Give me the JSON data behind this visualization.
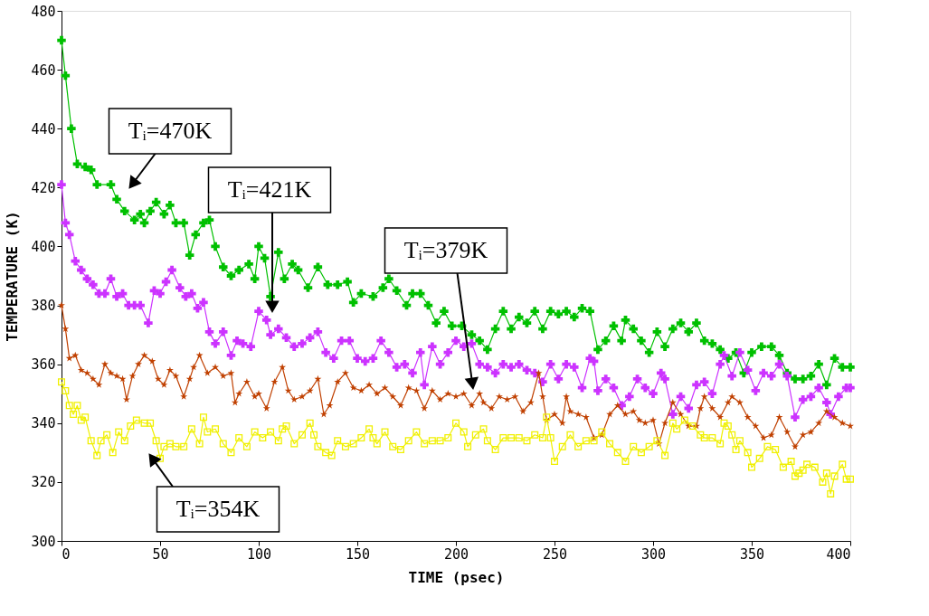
{
  "chart_data": {
    "type": "line",
    "xlabel": "TIME (psec)",
    "ylabel": "TEMPERATURE (K)",
    "xlim": [
      0,
      400
    ],
    "ylim": [
      300,
      480
    ],
    "xticks": [
      0,
      50,
      100,
      150,
      200,
      250,
      300,
      350,
      400
    ],
    "yticks": [
      300,
      320,
      340,
      360,
      380,
      400,
      420,
      440,
      460,
      480
    ],
    "grid": false,
    "line_style": "solid",
    "series": [
      {
        "color": "#00c000",
        "marker": "cross",
        "x": [
          0,
          2,
          5,
          8,
          12,
          15,
          18,
          25,
          28,
          32,
          37,
          40,
          42,
          45,
          48,
          52,
          55,
          58,
          62,
          65,
          68,
          72,
          75,
          78,
          82,
          86,
          90,
          95,
          98,
          100,
          103,
          106,
          110,
          113,
          117,
          120,
          125,
          130,
          135,
          140,
          145,
          148,
          152,
          158,
          163,
          166,
          170,
          175,
          178,
          182,
          186,
          190,
          194,
          198,
          203,
          208,
          212,
          216,
          220,
          224,
          228,
          232,
          236,
          240,
          244,
          248,
          252,
          256,
          260,
          264,
          268,
          272,
          276,
          280,
          284,
          286,
          290,
          294,
          298,
          302,
          306,
          310,
          314,
          318,
          322,
          326,
          330,
          334,
          338,
          342,
          346,
          350,
          355,
          360,
          364,
          368,
          372,
          376,
          380,
          384,
          388,
          392,
          396,
          400
        ],
        "values": [
          470,
          458,
          440,
          428,
          427,
          426,
          421,
          421,
          416,
          412,
          409,
          411,
          408,
          412,
          415,
          411,
          414,
          408,
          408,
          397,
          404,
          408,
          409,
          400,
          393,
          390,
          392,
          394,
          389,
          400,
          396,
          383,
          398,
          389,
          394,
          392,
          386,
          393,
          387,
          387,
          388,
          381,
          384,
          383,
          386,
          389,
          385,
          380,
          384,
          384,
          380,
          374,
          378,
          373,
          373,
          370,
          368,
          365,
          372,
          378,
          372,
          376,
          374,
          378,
          372,
          378,
          377,
          378,
          376,
          379,
          378,
          365,
          368,
          373,
          368,
          375,
          372,
          368,
          364,
          371,
          366,
          372,
          374,
          371,
          374,
          368,
          367,
          365,
          362,
          364,
          357,
          364,
          366,
          366,
          363,
          357,
          355,
          355,
          356,
          360,
          353,
          362,
          359,
          359
        ]
      },
      {
        "color": "#cc33ff",
        "marker": "cross",
        "x": [
          0,
          2,
          4,
          7,
          10,
          13,
          16,
          19,
          22,
          25,
          28,
          31,
          34,
          37,
          40,
          44,
          47,
          50,
          53,
          56,
          60,
          63,
          66,
          69,
          72,
          75,
          78,
          82,
          86,
          89,
          92,
          96,
          100,
          104,
          106,
          110,
          114,
          118,
          122,
          126,
          130,
          134,
          138,
          142,
          146,
          150,
          154,
          158,
          162,
          166,
          170,
          174,
          178,
          182,
          184,
          188,
          192,
          196,
          200,
          204,
          208,
          212,
          216,
          220,
          224,
          228,
          232,
          236,
          240,
          244,
          248,
          252,
          256,
          260,
          264,
          268,
          270,
          272,
          276,
          280,
          284,
          288,
          292,
          296,
          300,
          304,
          306,
          310,
          314,
          318,
          322,
          326,
          330,
          334,
          336,
          340,
          344,
          348,
          352,
          356,
          360,
          364,
          368,
          372,
          376,
          380,
          384,
          388,
          390,
          394,
          398,
          400
        ],
        "values": [
          421,
          408,
          404,
          395,
          392,
          389,
          387,
          384,
          384,
          389,
          383,
          384,
          380,
          380,
          380,
          374,
          385,
          384,
          388,
          392,
          386,
          383,
          384,
          379,
          381,
          371,
          367,
          371,
          363,
          368,
          367,
          366,
          378,
          375,
          370,
          372,
          369,
          366,
          367,
          369,
          371,
          364,
          362,
          368,
          368,
          362,
          361,
          362,
          368,
          364,
          359,
          360,
          357,
          364,
          353,
          366,
          360,
          364,
          368,
          366,
          367,
          360,
          359,
          357,
          360,
          359,
          360,
          358,
          357,
          354,
          360,
          355,
          360,
          359,
          352,
          362,
          361,
          351,
          355,
          352,
          346,
          349,
          355,
          352,
          350,
          357,
          355,
          343,
          349,
          345,
          353,
          354,
          350,
          360,
          363,
          356,
          364,
          358,
          351,
          357,
          356,
          360,
          356,
          342,
          348,
          349,
          352,
          347,
          343,
          349,
          352,
          352
        ]
      },
      {
        "color": "#c04000",
        "marker": "star",
        "x": [
          0,
          2,
          4,
          7,
          10,
          13,
          16,
          19,
          22,
          25,
          28,
          31,
          33,
          36,
          39,
          42,
          46,
          49,
          52,
          55,
          58,
          62,
          65,
          67,
          70,
          74,
          78,
          82,
          86,
          88,
          90,
          94,
          98,
          100,
          104,
          108,
          112,
          115,
          118,
          122,
          126,
          130,
          133,
          136,
          140,
          144,
          148,
          152,
          156,
          160,
          164,
          168,
          172,
          176,
          180,
          184,
          188,
          192,
          196,
          200,
          204,
          208,
          212,
          214,
          218,
          222,
          226,
          230,
          234,
          238,
          242,
          244,
          246,
          250,
          254,
          256,
          258,
          262,
          266,
          270,
          274,
          278,
          282,
          286,
          290,
          293,
          296,
          300,
          303,
          306,
          310,
          314,
          318,
          322,
          324,
          326,
          330,
          334,
          338,
          340,
          344,
          348,
          352,
          356,
          360,
          364,
          368,
          372,
          376,
          380,
          384,
          388,
          392,
          396,
          400
        ],
        "values": [
          380,
          372,
          362,
          363,
          358,
          357,
          355,
          353,
          360,
          357,
          356,
          355,
          348,
          356,
          360,
          363,
          361,
          355,
          353,
          358,
          356,
          349,
          355,
          359,
          363,
          357,
          359,
          356,
          357,
          347,
          350,
          354,
          349,
          350,
          345,
          354,
          359,
          351,
          348,
          349,
          351,
          355,
          343,
          346,
          354,
          357,
          352,
          351,
          353,
          350,
          352,
          349,
          346,
          352,
          351,
          345,
          351,
          348,
          350,
          349,
          350,
          346,
          350,
          347,
          345,
          349,
          348,
          349,
          344,
          347,
          357,
          349,
          341,
          343,
          340,
          349,
          344,
          343,
          342,
          335,
          336,
          343,
          346,
          343,
          344,
          341,
          340,
          341,
          333,
          340,
          347,
          343,
          339,
          339,
          345,
          349,
          345,
          342,
          347,
          349,
          347,
          342,
          339,
          335,
          336,
          342,
          337,
          332,
          336,
          337,
          340,
          344,
          342,
          340,
          339
        ]
      },
      {
        "color": "#f0f000",
        "marker": "square",
        "x": [
          0,
          2,
          4,
          6,
          8,
          10,
          12,
          15,
          18,
          20,
          23,
          26,
          29,
          32,
          35,
          38,
          42,
          45,
          48,
          50,
          52,
          55,
          58,
          62,
          66,
          70,
          72,
          74,
          78,
          82,
          86,
          90,
          94,
          98,
          102,
          106,
          110,
          112,
          114,
          118,
          122,
          126,
          128,
          130,
          134,
          137,
          140,
          144,
          148,
          152,
          156,
          158,
          160,
          164,
          168,
          172,
          176,
          180,
          184,
          188,
          192,
          196,
          200,
          204,
          206,
          210,
          214,
          216,
          220,
          224,
          228,
          232,
          236,
          240,
          244,
          246,
          248,
          250,
          254,
          258,
          262,
          266,
          270,
          274,
          278,
          282,
          286,
          290,
          294,
          298,
          302,
          306,
          310,
          312,
          316,
          320,
          324,
          326,
          330,
          334,
          336,
          338,
          340,
          342,
          344,
          348,
          350,
          354,
          358,
          362,
          366,
          370,
          372,
          374,
          376,
          378,
          382,
          386,
          388,
          390,
          392,
          396,
          398,
          400
        ],
        "values": [
          354,
          351,
          346,
          343,
          346,
          341,
          342,
          334,
          329,
          334,
          336,
          330,
          337,
          334,
          339,
          341,
          340,
          340,
          334,
          328,
          332,
          333,
          332,
          332,
          338,
          333,
          342,
          337,
          338,
          333,
          330,
          335,
          332,
          337,
          335,
          337,
          334,
          338,
          339,
          333,
          336,
          340,
          336,
          332,
          330,
          329,
          334,
          332,
          333,
          335,
          338,
          335,
          333,
          337,
          332,
          331,
          334,
          337,
          333,
          334,
          334,
          335,
          340,
          337,
          332,
          336,
          338,
          334,
          331,
          335,
          335,
          335,
          334,
          336,
          335,
          342,
          335,
          327,
          332,
          336,
          332,
          334,
          334,
          337,
          333,
          330,
          327,
          332,
          330,
          332,
          334,
          329,
          340,
          338,
          341,
          339,
          336,
          335,
          335,
          333,
          340,
          339,
          336,
          331,
          334,
          330,
          325,
          328,
          332,
          331,
          325,
          327,
          322,
          323,
          324,
          326,
          325,
          320,
          323,
          316,
          322,
          326,
          321,
          321
        ]
      }
    ],
    "annotations": [
      "Tᵢ=470K",
      "Tᵢ=421K",
      "Tᵢ=379K",
      "Tᵢ=354K"
    ]
  }
}
